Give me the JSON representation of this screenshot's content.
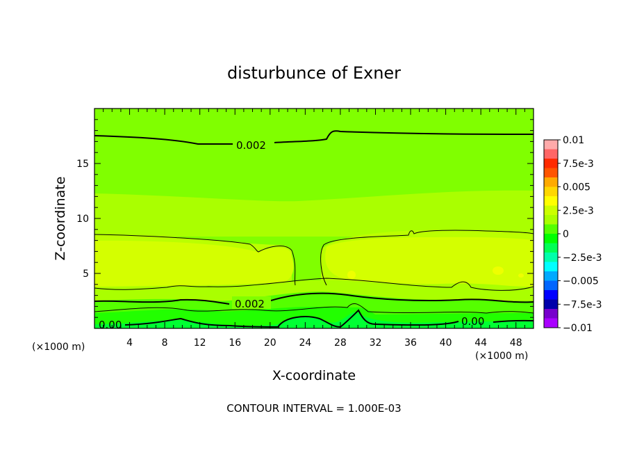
{
  "chart_data": {
    "type": "contour",
    "title": "disturbunce of Exner",
    "xlabel": "X-coordinate",
    "ylabel": "Z-coordinate",
    "x_unit": "(×1000 m)",
    "z_unit": "(×1000 m)",
    "xlim": [
      0,
      50
    ],
    "ylim": [
      0,
      20
    ],
    "xticks": [
      4,
      8,
      12,
      16,
      20,
      24,
      28,
      32,
      36,
      40,
      44,
      48
    ],
    "yticks": [
      5,
      10,
      15
    ],
    "colorbar": {
      "labels": [
        "0.01",
        "7.5e-3",
        "0.005",
        "2.5e-3",
        "0",
        "−2.5e-3",
        "−0.005",
        "−7.5e-3",
        "−0.01"
      ],
      "values": [
        0.01,
        0.0075,
        0.005,
        0.0025,
        0,
        -0.0025,
        -0.005,
        -0.0075,
        -0.01
      ],
      "colors": [
        "#ffaaaa",
        "#ff6666",
        "#ff2a00",
        "#ff5500",
        "#ffaa00",
        "#ffd700",
        "#ffff00",
        "#ccff00",
        "#aaff00",
        "#55ff00",
        "#00ff00",
        "#00ff55",
        "#00ffaa",
        "#00ffff",
        "#00aaff",
        "#0066ff",
        "#0000ff",
        "#0000aa",
        "#7700cc",
        "#aa00ff"
      ]
    },
    "contour_labels": [
      {
        "text": "0.002",
        "x": 18.5,
        "z": 16.7
      },
      {
        "text": "0.002",
        "x": 18.0,
        "z": 2.4
      },
      {
        "text": "0.00",
        "x": 2.0,
        "z": 0.5
      },
      {
        "text": "0.00",
        "x": 43.0,
        "z": 0.8
      }
    ],
    "contour_interval_text": "CONTOUR INTERVAL = 1.000E-03"
  }
}
